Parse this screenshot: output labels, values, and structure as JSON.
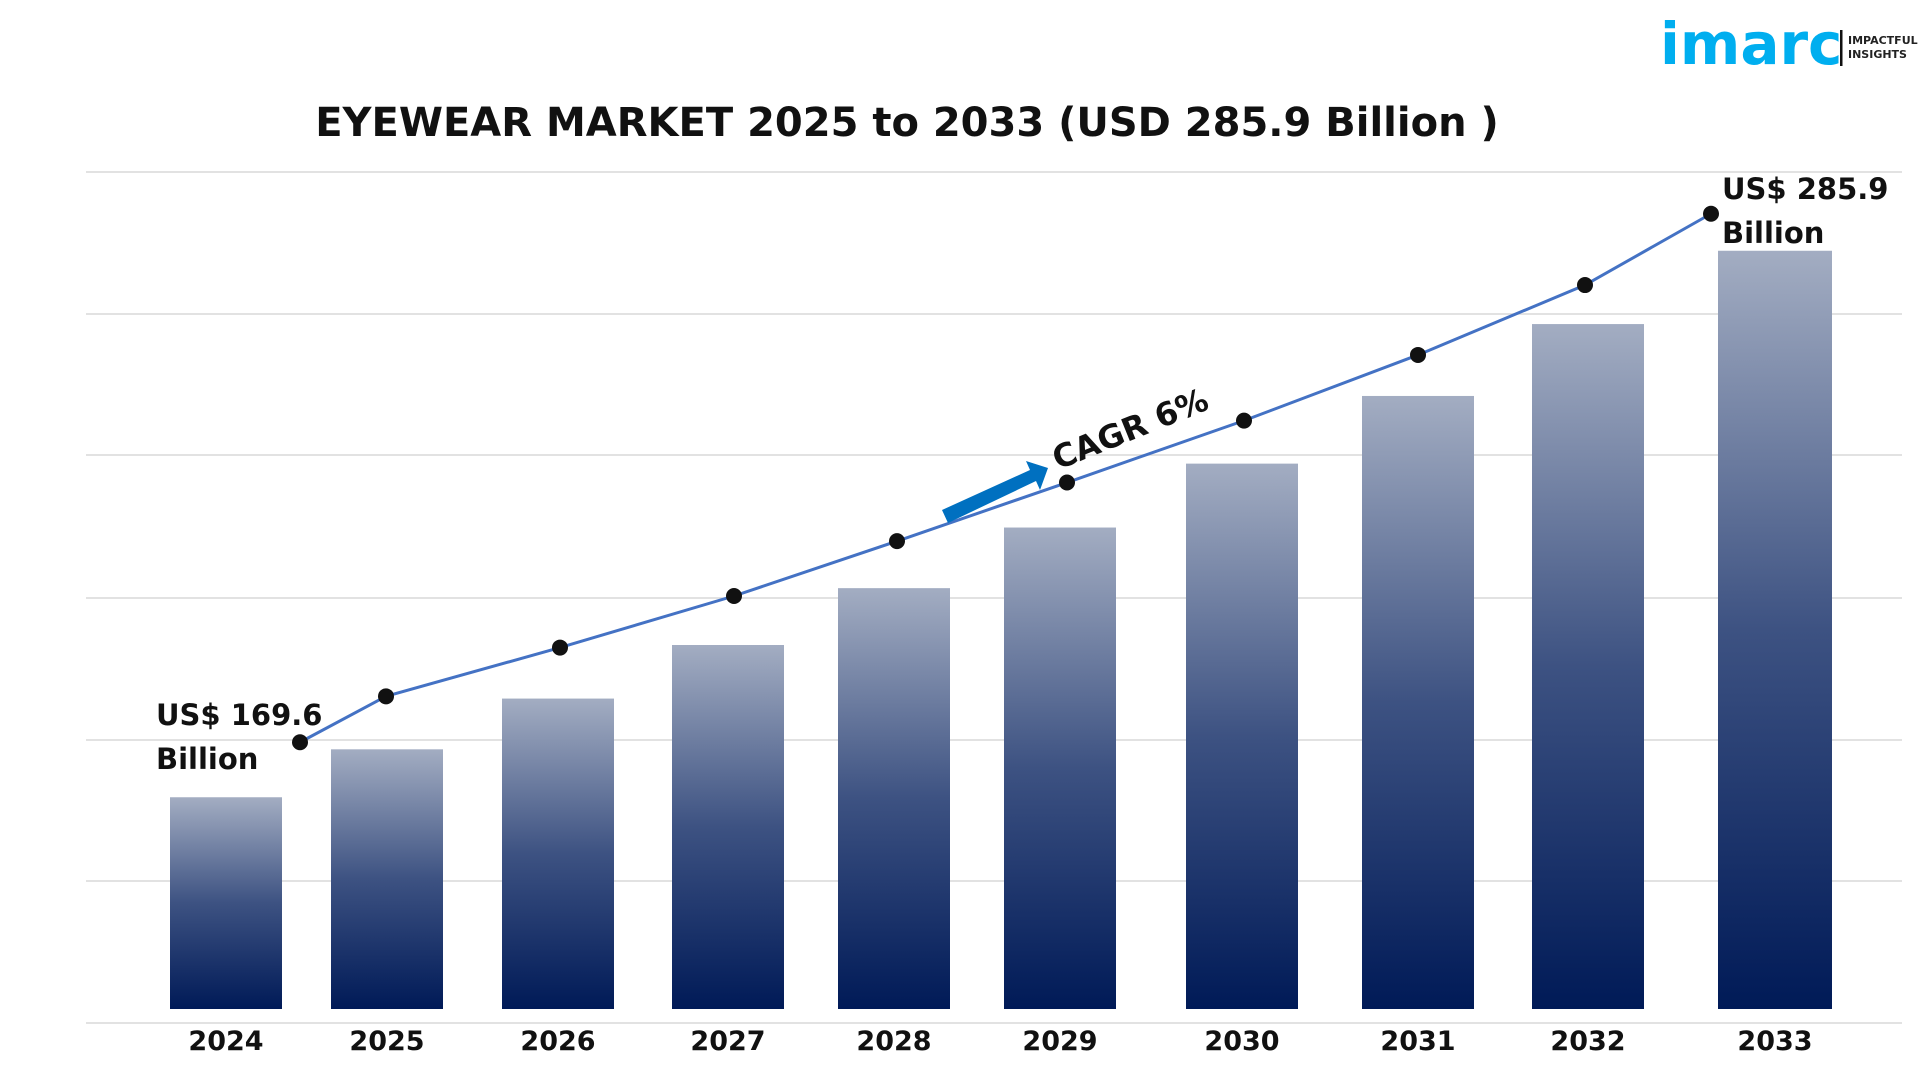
{
  "logo": {
    "name": "imarc",
    "tagline_line1": "IMPACTFUL",
    "tagline_line2": "INSIGHTS",
    "color": "#00AEEF"
  },
  "chart_data": {
    "type": "bar",
    "title": "EYEWEAR MARKET 2025 to 2033 (USD 285.9 Billion )",
    "categories": [
      "2024",
      "2025",
      "2026",
      "2027",
      "2028",
      "2029",
      "2030",
      "2031",
      "2032",
      "2033"
    ],
    "values": [
      169.6,
      179.8,
      190.6,
      202.0,
      214.1,
      227.0,
      240.6,
      255.0,
      270.3,
      285.9
    ],
    "unit": "USD Billion",
    "overlay_line": true,
    "annotations": {
      "start_value": "US$ 169.6",
      "start_unit": "Billion",
      "end_value": "US$ 285.9",
      "end_unit": "Billion",
      "cagr": "CAGR 6%"
    },
    "grid": true,
    "legend": "none",
    "colors": {
      "bar_top": "#A3ADC2",
      "bar_bottom": "#001A57",
      "line": "#4472C4",
      "marker": "#111111",
      "arrow": "#0070C0"
    }
  }
}
